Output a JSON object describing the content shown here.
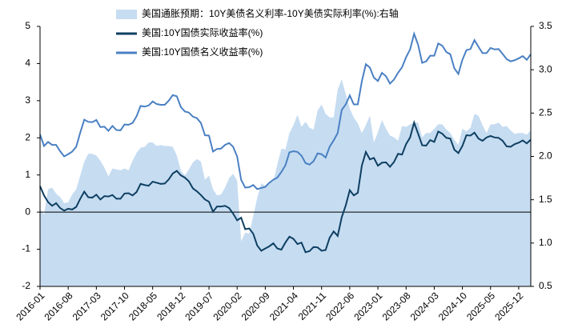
{
  "chart_data": {
    "type": "line",
    "categories": [
      "2016-01",
      null,
      null,
      null,
      null,
      null,
      null,
      "2016-08",
      null,
      null,
      null,
      null,
      null,
      null,
      "2017-03",
      null,
      null,
      null,
      null,
      null,
      null,
      "2017-10",
      null,
      null,
      null,
      null,
      null,
      null,
      "2018-05",
      null,
      null,
      null,
      null,
      null,
      null,
      "2018-12",
      null,
      null,
      null,
      null,
      null,
      null,
      "2019-07",
      null,
      null,
      null,
      null,
      null,
      null,
      "2020-02",
      null,
      null,
      null,
      null,
      null,
      null,
      "2020-09",
      null,
      null,
      null,
      null,
      null,
      null,
      "2021-04",
      null,
      null,
      null,
      null,
      null,
      null,
      "2021-11",
      null,
      null,
      null,
      null,
      null,
      null,
      "2022-06",
      null,
      null,
      null,
      null,
      null,
      null,
      "2023-01",
      null,
      null,
      null,
      null,
      null,
      null,
      "2023-08",
      null,
      null,
      null,
      null,
      null,
      null,
      "2024-03",
      null,
      null,
      null,
      null,
      null,
      null,
      "2024-10",
      null,
      null,
      null,
      null,
      null,
      null,
      "2025-05",
      null,
      null,
      null,
      null,
      null,
      null,
      "2025-12",
      null,
      null,
      null
    ],
    "series": [
      {
        "name": "美国通胀预期：10Y美债名义利率-10Y美债实际利率(%):右轴",
        "type": "area",
        "axis": "y2",
        "color": "#c6dcf1",
        "values": [
          1.39,
          1.33,
          1.62,
          1.64,
          1.57,
          1.53,
          1.46,
          1.47,
          1.56,
          1.62,
          1.78,
          1.94,
          2.03,
          2.03,
          2.01,
          1.95,
          1.87,
          1.77,
          1.86,
          1.85,
          1.84,
          1.86,
          1.84,
          1.95,
          2.04,
          2.1,
          2.11,
          2.16,
          2.16,
          2.12,
          2.13,
          2.12,
          2.12,
          2.11,
          2.01,
          1.84,
          1.78,
          1.85,
          1.93,
          1.97,
          1.94,
          1.73,
          1.78,
          1.62,
          1.55,
          1.56,
          1.64,
          1.75,
          1.8,
          1.72,
          1.02,
          1.12,
          1.11,
          1.31,
          1.52,
          1.69,
          1.66,
          1.71,
          1.71,
          1.91,
          2.09,
          2.08,
          2.27,
          2.36,
          2.48,
          2.34,
          2.4,
          2.33,
          2.31,
          2.53,
          2.6,
          2.49,
          2.45,
          2.45,
          2.77,
          2.89,
          2.72,
          2.55,
          2.45,
          2.38,
          2.27,
          2.36,
          2.47,
          2.16,
          2.28,
          2.42,
          2.32,
          2.24,
          2.22,
          2.18,
          2.35,
          2.34,
          2.37,
          2.39,
          2.39,
          2.22,
          2.27,
          2.27,
          2.32,
          2.37,
          2.37,
          2.31,
          2.27,
          2.19,
          2.13,
          2.32,
          2.29,
          2.33,
          2.49,
          2.47,
          2.36,
          2.27,
          2.37,
          2.37,
          2.39,
          2.34,
          2.35,
          2.3,
          2.26,
          2.27,
          2.27,
          2.25,
          2.3
        ]
      },
      {
        "name": "美国:10Y国债实际收益率(%)",
        "type": "line",
        "axis": "y",
        "color": "#0e3f62",
        "values": [
          0.7,
          0.45,
          0.27,
          0.17,
          0.24,
          0.11,
          0.04,
          0.09,
          0.07,
          0.14,
          0.36,
          0.55,
          0.4,
          0.39,
          0.47,
          0.34,
          0.43,
          0.42,
          0.46,
          0.36,
          0.36,
          0.5,
          0.51,
          0.45,
          0.54,
          0.76,
          0.73,
          0.71,
          0.82,
          0.79,
          0.76,
          0.77,
          0.88,
          1.04,
          1.11,
          0.99,
          0.93,
          0.83,
          0.64,
          0.56,
          0.46,
          0.34,
          0.28,
          0.01,
          0.15,
          0.15,
          0.17,
          0.11,
          -0.04,
          -0.22,
          -0.15,
          -0.46,
          -0.44,
          -0.58,
          -0.9,
          -1.04,
          -0.98,
          -0.92,
          -0.84,
          -0.98,
          -1.01,
          -0.82,
          -0.66,
          -0.72,
          -0.86,
          -0.82,
          -1.08,
          -1.05,
          -0.94,
          -0.95,
          -1.04,
          -1.02,
          -0.69,
          -0.52,
          -0.64,
          -0.14,
          0.18,
          0.59,
          0.45,
          0.52,
          1.25,
          1.62,
          1.42,
          1.46,
          1.25,
          1.33,
          1.34,
          1.22,
          1.35,
          1.57,
          1.55,
          1.83,
          2.01,
          2.41,
          2.11,
          1.8,
          1.79,
          1.94,
          1.89,
          2.17,
          2.11,
          2.0,
          1.98,
          1.68,
          1.59,
          1.78,
          2.07,
          2.06,
          2.14,
          1.98,
          1.92,
          2.01,
          2.05,
          2.01,
          2.0,
          1.92,
          1.77,
          1.76,
          1.83,
          1.87,
          1.93,
          1.85,
          1.95
        ]
      },
      {
        "name": "美国:10Y国债名义收益率(%)",
        "type": "line",
        "axis": "y",
        "color": "#4a80c3",
        "values": [
          2.09,
          1.78,
          1.89,
          1.81,
          1.81,
          1.64,
          1.5,
          1.56,
          1.63,
          1.76,
          2.14,
          2.49,
          2.43,
          2.42,
          2.48,
          2.29,
          2.3,
          2.19,
          2.32,
          2.21,
          2.2,
          2.36,
          2.35,
          2.4,
          2.58,
          2.86,
          2.84,
          2.87,
          2.98,
          2.91,
          2.89,
          2.89,
          3.0,
          3.15,
          3.12,
          2.83,
          2.71,
          2.68,
          2.57,
          2.53,
          2.4,
          2.07,
          2.06,
          1.63,
          1.7,
          1.71,
          1.81,
          1.86,
          1.76,
          1.5,
          0.87,
          0.66,
          0.67,
          0.73,
          0.62,
          0.65,
          0.68,
          0.79,
          0.87,
          0.93,
          1.08,
          1.26,
          1.61,
          1.64,
          1.62,
          1.52,
          1.32,
          1.28,
          1.37,
          1.58,
          1.56,
          1.47,
          1.76,
          1.93,
          2.13,
          2.75,
          2.9,
          3.14,
          2.9,
          2.9,
          3.52,
          3.98,
          3.89,
          3.62,
          3.53,
          3.75,
          3.66,
          3.46,
          3.57,
          3.75,
          3.9,
          4.17,
          4.38,
          4.8,
          4.5,
          4.02,
          4.06,
          4.21,
          4.21,
          4.54,
          4.48,
          4.31,
          4.25,
          3.87,
          3.72,
          4.1,
          4.36,
          4.39,
          4.63,
          4.45,
          4.28,
          4.28,
          4.42,
          4.38,
          4.39,
          4.26,
          4.12,
          4.06,
          4.09,
          4.14,
          4.2,
          4.1,
          4.25
        ]
      }
    ],
    "ylim": [
      -2,
      5
    ],
    "yticks": [
      -2,
      -1,
      0,
      1,
      2,
      3,
      4,
      5
    ],
    "y2lim": [
      0.5,
      3.5
    ],
    "y2ticks": [
      0.5,
      {
        "value": 1,
        "label": "1.0"
      },
      1.5,
      {
        "value": 2,
        "label": "2.0"
      },
      2.5,
      {
        "value": 3,
        "label": "3.0"
      },
      3.5
    ],
    "legend": "top"
  }
}
